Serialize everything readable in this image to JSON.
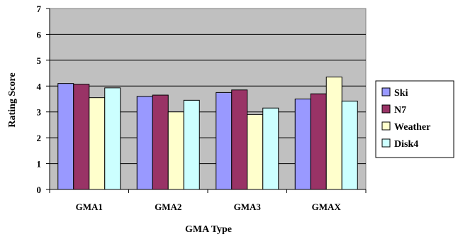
{
  "chart_data": {
    "type": "bar",
    "categories": [
      "GMA1",
      "GMA2",
      "GMA3",
      "GMAX"
    ],
    "series": [
      {
        "name": "Ski",
        "values": [
          4.1,
          3.6,
          3.75,
          3.5
        ],
        "color": "#9999ff"
      },
      {
        "name": "N7",
        "values": [
          4.07,
          3.65,
          3.85,
          3.7
        ],
        "color": "#993366"
      },
      {
        "name": "Weather",
        "values": [
          3.55,
          3.0,
          2.9,
          4.35
        ],
        "color": "#ffffcc"
      },
      {
        "name": "Disk4",
        "values": [
          3.93,
          3.45,
          3.15,
          3.42
        ],
        "color": "#ccffff"
      }
    ],
    "title": "",
    "xlabel": "GMA Type",
    "ylabel": "Rating Score",
    "ylim": [
      0,
      7
    ],
    "yticks": [
      "0",
      "1",
      "2",
      "3",
      "4",
      "5",
      "6",
      "7"
    ],
    "grid": true,
    "plot_background": "#c0c0c0",
    "legend_position": "right"
  }
}
